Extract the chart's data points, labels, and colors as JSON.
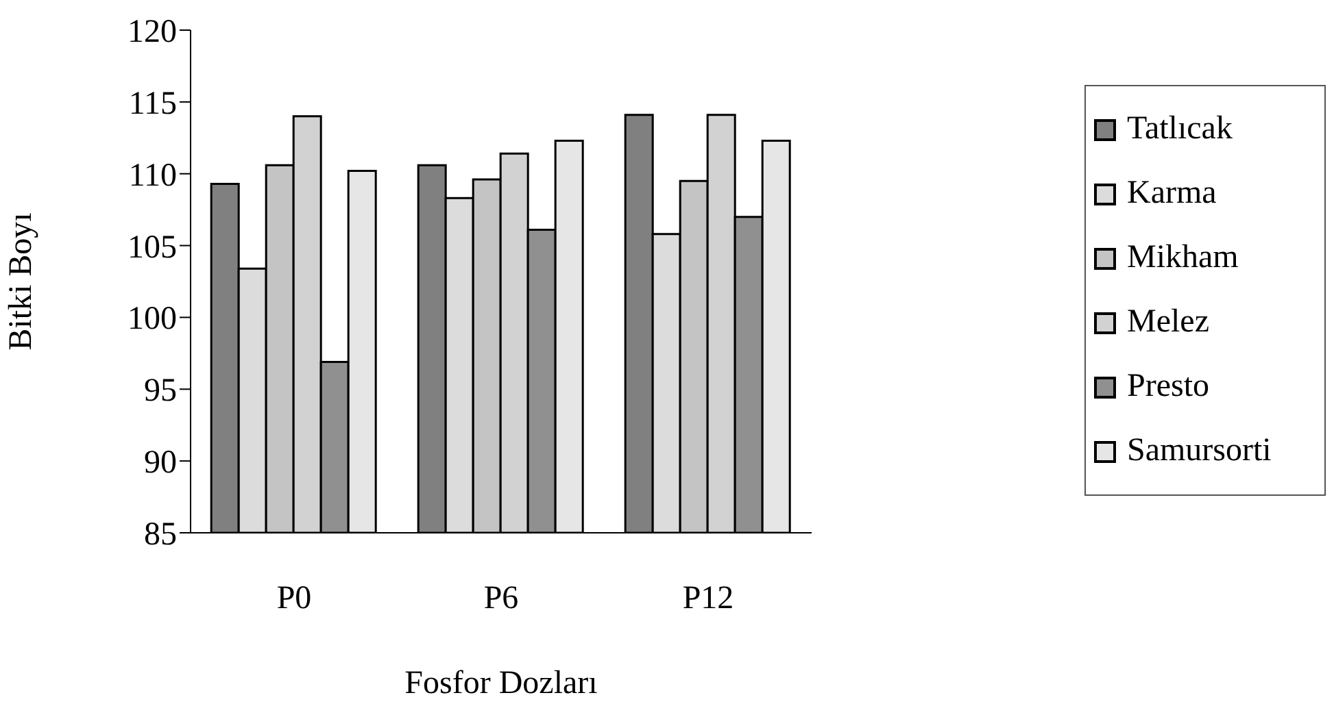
{
  "chart_data": {
    "type": "bar",
    "xlabel": "Fosfor Dozları",
    "ylabel": "Bitki Boyı",
    "categories": [
      "P0",
      "P6",
      "P12"
    ],
    "series": [
      {
        "name": "Tatlıcak",
        "color": "#808080",
        "values": [
          109.3,
          110.6,
          114.1
        ]
      },
      {
        "name": "Karma",
        "color": "#dcdcdc",
        "values": [
          103.4,
          108.3,
          105.8
        ]
      },
      {
        "name": "Mikham",
        "color": "#c4c4c4",
        "values": [
          110.6,
          109.6,
          109.5
        ]
      },
      {
        "name": "Melez",
        "color": "#d2d2d2",
        "values": [
          114.0,
          111.4,
          114.1
        ]
      },
      {
        "name": "Presto",
        "color": "#909090",
        "values": [
          96.9,
          106.1,
          107.0
        ]
      },
      {
        "name": "Samursorti",
        "color": "#e6e6e6",
        "values": [
          110.2,
          112.3,
          112.3
        ]
      }
    ],
    "ylim": [
      85,
      120
    ],
    "yticks": [
      85,
      90,
      95,
      100,
      105,
      110,
      115,
      120
    ],
    "grid": false,
    "legend": "right"
  }
}
